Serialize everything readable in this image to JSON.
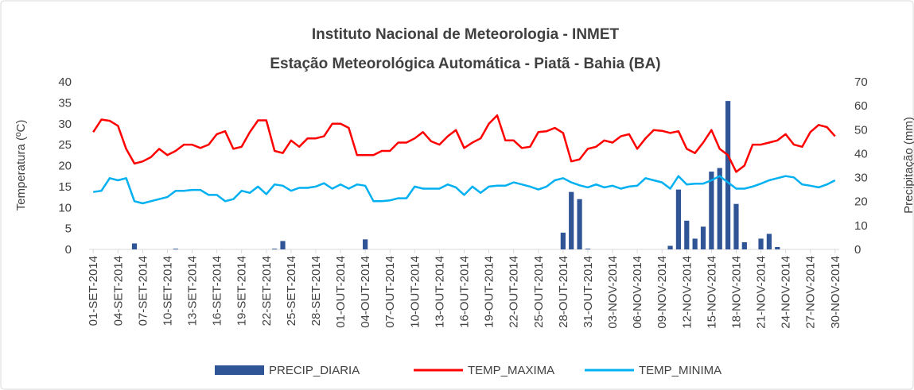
{
  "chart_data": {
    "type": "combo",
    "title": "Instituto Nacional de Meteorologia - INMET",
    "subtitle": "Estação Meteorológica Automática - Piatã - Bahia (BA)",
    "y_label": "Temperatura (ºC)",
    "y2_label": "Precipitação (mm)",
    "categories": [
      "01-SET-2014",
      null,
      null,
      "04-SET-2014",
      null,
      null,
      "07-SET-2014",
      null,
      null,
      "10-SET-2014",
      null,
      null,
      "13-SET-2014",
      null,
      null,
      "16-SET-2014",
      null,
      null,
      "19-SET-2014",
      null,
      null,
      "22-SET-2014",
      null,
      null,
      "25-SET-2014",
      null,
      null,
      "28-SET-2014",
      null,
      null,
      "01-OUT-2014",
      null,
      null,
      "04-OUT-2014",
      null,
      null,
      "07-OUT-2014",
      null,
      null,
      "10-OUT-2014",
      null,
      null,
      "13-OUT-2014",
      null,
      null,
      "16-OUT-2014",
      null,
      null,
      "19-OUT-2014",
      null,
      null,
      "22-OUT-2014",
      null,
      null,
      "25-OUT-2014",
      null,
      null,
      "28-OUT-2014",
      null,
      null,
      "31-OUT-2014",
      null,
      null,
      "03-NOV-2014",
      null,
      null,
      "06-NOV-2014",
      null,
      null,
      "09-NOV-2014",
      null,
      null,
      "12-NOV-2014",
      null,
      null,
      "15-NOV-2014",
      null,
      null,
      "18-NOV-2014",
      null,
      null,
      "21-NOV-2014",
      null,
      null,
      "24-NOV-2014",
      null,
      null,
      "27-NOV-2014",
      null,
      null,
      "30-NOV-2014"
    ],
    "series": [
      {
        "name": "PRECIP_DIARIA",
        "type": "bar",
        "axis": "y2",
        "color": "#2f5597",
        "values": [
          0,
          0,
          0,
          0,
          0,
          2.5,
          0,
          0,
          0,
          0,
          0.3,
          0,
          0,
          0,
          0,
          0,
          0,
          0,
          0,
          0,
          0,
          0,
          0.3,
          3.5,
          0,
          0,
          0,
          0,
          0,
          0,
          0,
          0,
          0,
          4.2,
          0,
          0,
          0,
          0,
          0,
          0,
          0,
          0,
          0,
          0,
          0,
          0,
          0,
          0,
          0,
          0,
          0,
          0,
          0,
          0,
          0,
          0,
          0,
          7,
          24,
          21,
          0.3,
          0,
          0,
          0,
          0,
          0,
          0,
          0,
          0,
          0,
          1.5,
          25,
          12,
          4.5,
          9.5,
          32.5,
          34,
          62,
          19,
          3,
          0,
          4.5,
          6.5,
          1,
          0,
          0,
          0,
          0,
          0,
          0,
          0
        ]
      },
      {
        "name": "TEMP_MAXIMA",
        "type": "line",
        "color": "#ff0000",
        "values": [
          28,
          31,
          30.7,
          29.5,
          24,
          20.5,
          21,
          22,
          24,
          22.5,
          23.5,
          25,
          25,
          24.2,
          25,
          27.5,
          28.2,
          24,
          24.5,
          28,
          30.8,
          30.8,
          23.5,
          23,
          26,
          24.5,
          26.5,
          26.5,
          27,
          30,
          30,
          29,
          22.5,
          22.5,
          22.5,
          23.5,
          23.5,
          25.5,
          25.5,
          26.5,
          28,
          25.8,
          25,
          27,
          28.5,
          24.2,
          25.5,
          26.5,
          30,
          32,
          26,
          26,
          24.2,
          24.5,
          28,
          28.2,
          29,
          27.8,
          21,
          21.5,
          24,
          24.5,
          26,
          25.5,
          27,
          27.5,
          24,
          26.5,
          28.5,
          28.3,
          27.8,
          28.2,
          24,
          23,
          25.5,
          28.5,
          24,
          22.5,
          18.5,
          20,
          25,
          25,
          25.5,
          26,
          27.5,
          25,
          24.5,
          28,
          29.7,
          29.2,
          27
        ]
      },
      {
        "name": "TEMP_MINIMA",
        "type": "line",
        "color": "#00b0f0",
        "values": [
          13.7,
          14,
          17,
          16.5,
          17,
          11.5,
          11,
          11.5,
          12,
          12.5,
          14,
          14,
          14.2,
          14.2,
          13,
          13,
          11.5,
          12,
          14,
          13.5,
          15,
          13.2,
          15.5,
          15.2,
          14,
          14.7,
          14.7,
          15,
          15.8,
          14.5,
          15.5,
          14.5,
          15.5,
          15.2,
          11.5,
          11.5,
          11.7,
          12.2,
          12.2,
          15,
          14.5,
          14.5,
          14.5,
          15.5,
          14.8,
          13,
          15,
          13.5,
          15,
          15.2,
          15.2,
          16,
          15.5,
          15,
          14.3,
          15,
          16.5,
          17,
          16,
          15.3,
          14.8,
          15.5,
          14.8,
          15.2,
          14.5,
          15,
          15.2,
          17,
          16.5,
          16,
          14.5,
          17.5,
          15.5,
          15.7,
          15.7,
          16.5,
          17.5,
          16,
          14.5,
          14.5,
          15,
          15.7,
          16.5,
          17,
          17.5,
          17.2,
          15.5,
          15.2,
          14.8,
          15.5,
          16.5
        ]
      }
    ],
    "ylim": [
      0,
      40
    ],
    "yticks": [
      0,
      5,
      10,
      15,
      20,
      25,
      30,
      35,
      40
    ],
    "y2lim": [
      0,
      70
    ],
    "y2ticks": [
      0,
      10,
      20,
      30,
      40,
      50,
      60,
      70
    ],
    "legend": "bottom"
  }
}
